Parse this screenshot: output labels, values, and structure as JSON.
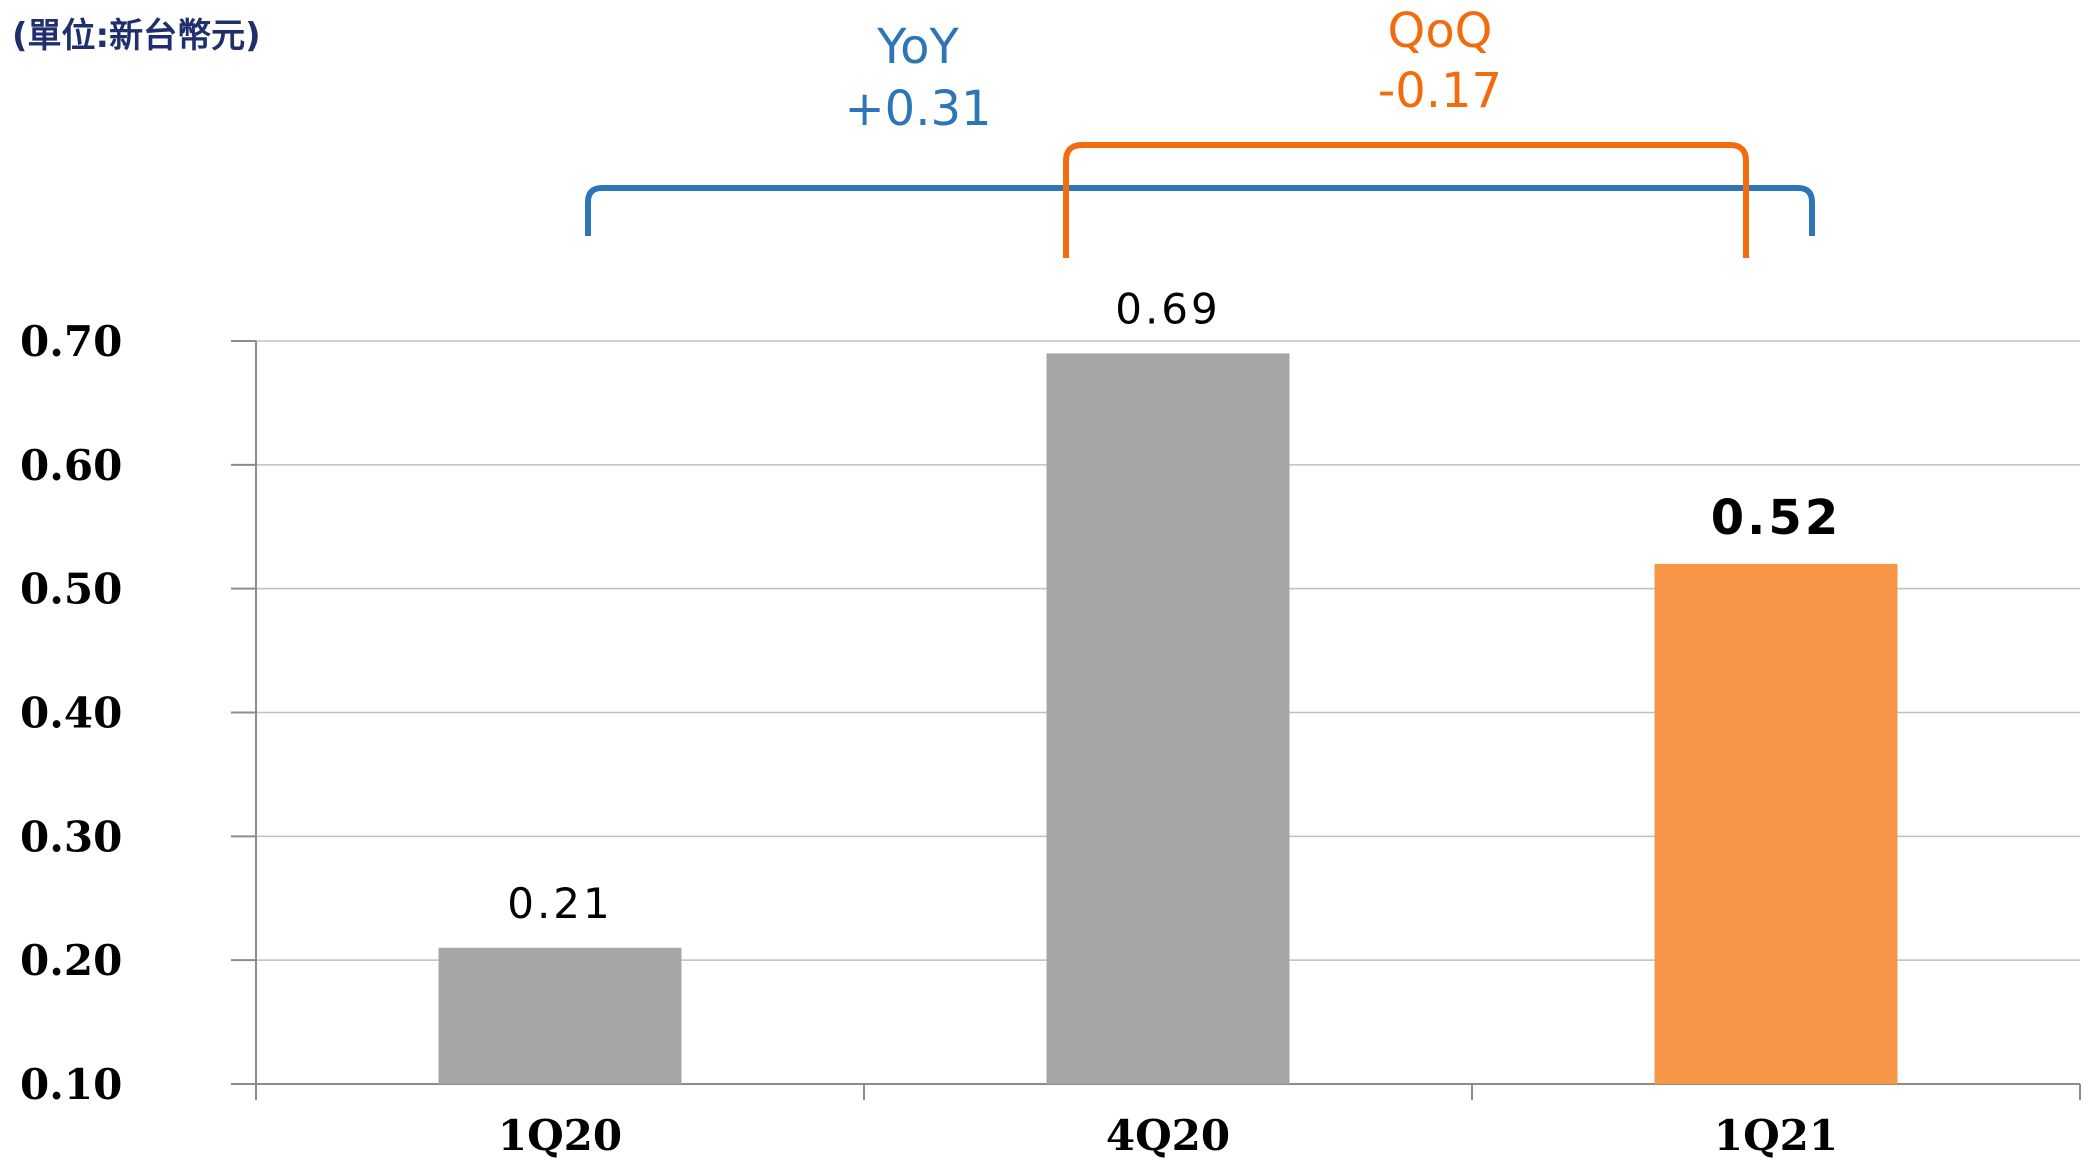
{
  "unit_label": "(單位:新台幣元)",
  "colors": {
    "bar_default": "#a6a6a6",
    "bar_highlight": "#f79646",
    "yoy": "#2e75b6",
    "qoq": "#f26c0d",
    "grid": "#bfbfbf",
    "axis": "#8c8c8c",
    "text": "#000000"
  },
  "annotations": {
    "yoy": {
      "label": "YoY",
      "value": "+0.31"
    },
    "qoq": {
      "label": "QoQ",
      "value": "-0.17"
    }
  },
  "chart_data": {
    "type": "bar",
    "title": "",
    "xlabel": "",
    "ylabel": "",
    "categories": [
      "1Q20",
      "4Q20",
      "1Q21"
    ],
    "values": [
      0.21,
      0.69,
      0.52
    ],
    "value_labels": [
      "0.21",
      "0.69",
      "0.52"
    ],
    "highlight_index": 2,
    "ylim": [
      0.1,
      0.7
    ],
    "yticks": [
      "0.10",
      "0.20",
      "0.30",
      "0.40",
      "0.50",
      "0.60",
      "0.70"
    ],
    "ytick_values": [
      0.1,
      0.2,
      0.3,
      0.4,
      0.5,
      0.6,
      0.7
    ],
    "grid": true,
    "legend": "none"
  }
}
